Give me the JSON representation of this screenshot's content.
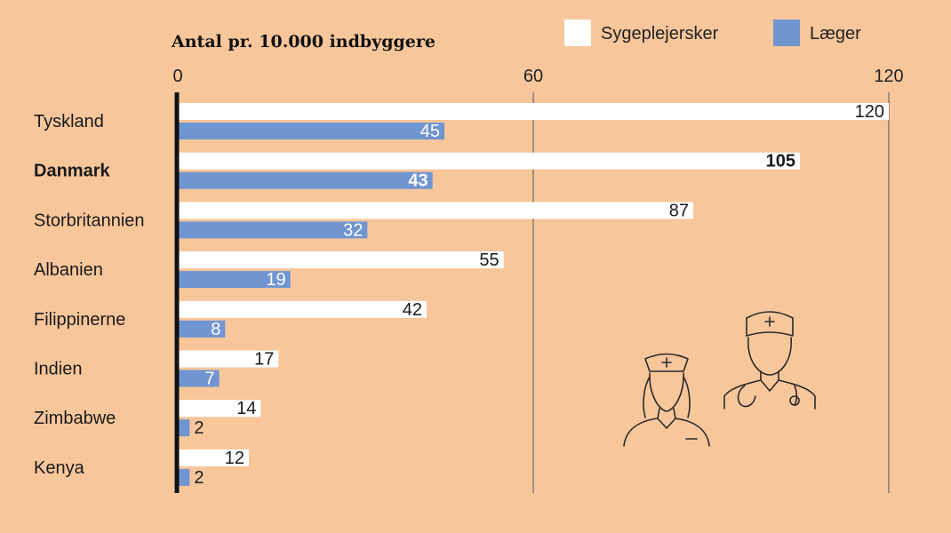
{
  "chart_data": {
    "type": "bar",
    "orientation": "horizontal",
    "title": "Antal pr. 10.000 indbyggere",
    "categories": [
      "Tyskland",
      "Danmark",
      "Storbritannien",
      "Albanien",
      "Filippinerne",
      "Indien",
      "Zimbabwe",
      "Kenya"
    ],
    "highlight_category": "Danmark",
    "series": [
      {
        "name": "Sygeplejersker",
        "color": "#ffffff",
        "label_color": "#1a1a1a",
        "values": [
          120,
          105,
          87,
          55,
          42,
          17,
          14,
          12
        ]
      },
      {
        "name": "Læger",
        "color": "#7095d1",
        "label_color": "#ffffff",
        "values": [
          45,
          43,
          32,
          19,
          8,
          7,
          2,
          2
        ]
      }
    ],
    "xlim": [
      0,
      120
    ],
    "xticks": [
      0,
      60,
      120
    ],
    "grid": true,
    "legend_position": "top-right",
    "background": "#f7c69b",
    "axis_color": "#111111"
  },
  "icons": [
    "nurse-icon",
    "doctor-icon"
  ]
}
